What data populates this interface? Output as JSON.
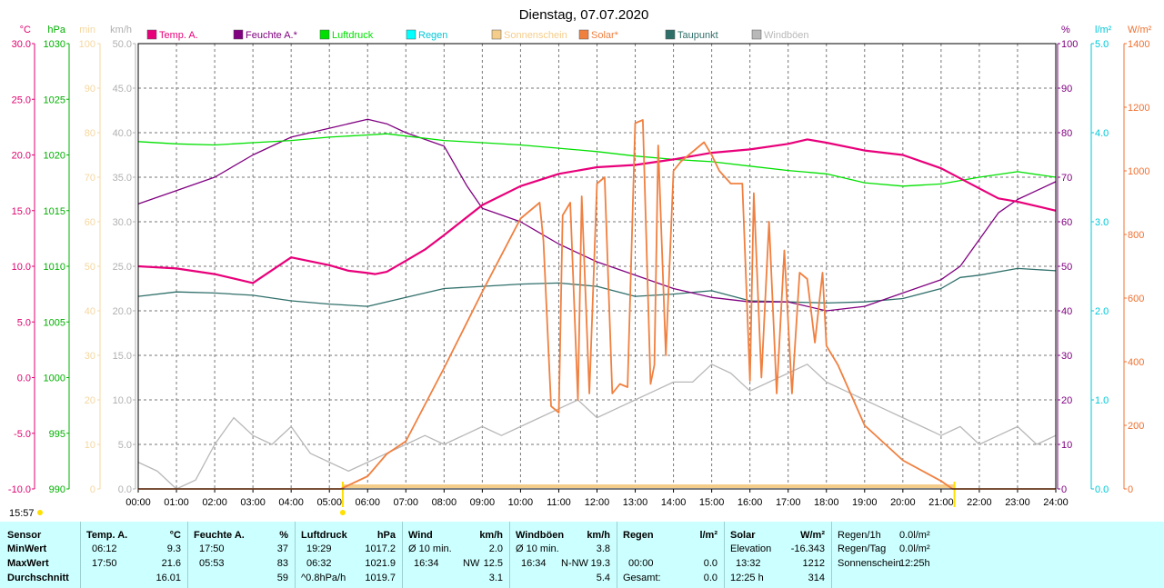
{
  "title": "Dienstag, 07.07.2020",
  "time_marker": "15:57",
  "legend": [
    {
      "label": "Temp. A.",
      "color": "#e8007a"
    },
    {
      "label": "Feuchte A.*",
      "color": "#800080"
    },
    {
      "label": "Luftdruck",
      "color": "#00e000"
    },
    {
      "label": "Regen",
      "color": "#00ffff"
    },
    {
      "label": "Sonnenschein",
      "color": "#f5cd8a"
    },
    {
      "label": "Solar*",
      "color": "#f08040"
    },
    {
      "label": "Taupunkt",
      "color": "#2f6f6a"
    },
    {
      "label": "Windböen",
      "color": "#b8b8b8"
    }
  ],
  "axes": {
    "temp": {
      "unit": "°C",
      "ticks": [
        "30.0",
        "25.0",
        "20.0",
        "15.0",
        "10.0",
        "5.0",
        "0.0",
        "-5.0",
        "-10.0"
      ],
      "color": "#e0006f"
    },
    "pressure": {
      "unit": "hPa",
      "ticks": [
        "1030",
        "1025",
        "1020",
        "1015",
        "1010",
        "1005",
        "1000",
        "995",
        "990"
      ],
      "color": "#00b000"
    },
    "sun_min": {
      "unit": "min",
      "ticks": [
        "100",
        "90",
        "80",
        "70",
        "60",
        "50",
        "40",
        "30",
        "20",
        "10",
        "0"
      ],
      "color": "#f5d7a0"
    },
    "wind": {
      "unit": "km/h",
      "ticks": [
        "50.0",
        "45.0",
        "40.0",
        "35.0",
        "30.0",
        "25.0",
        "20.0",
        "15.0",
        "10.0",
        "5.0",
        "0.0"
      ],
      "color": "#b0b0b0"
    },
    "humidity": {
      "unit": "%",
      "ticks": [
        "100",
        "90",
        "80",
        "70",
        "60",
        "50",
        "40",
        "30",
        "20",
        "10",
        "0"
      ],
      "color": "#800080"
    },
    "rain": {
      "unit": "l/m²",
      "ticks": [
        "5.0",
        "4.0",
        "3.0",
        "2.0",
        "1.0",
        "0.0"
      ],
      "color": "#00c8d8"
    },
    "solar": {
      "unit": "W/m²",
      "ticks": [
        "1400",
        "1200",
        "1000",
        "800",
        "600",
        "400",
        "200",
        "0"
      ],
      "color": "#f07030"
    },
    "x_ticks": [
      "00:00",
      "01:00",
      "02:00",
      "03:00",
      "04:00",
      "05:00",
      "06:00",
      "07:00",
      "08:00",
      "09:00",
      "10:00",
      "11:00",
      "12:00",
      "13:00",
      "14:00",
      "15:00",
      "16:00",
      "17:00",
      "18:00",
      "19:00",
      "20:00",
      "21:00",
      "22:00",
      "23:00",
      "24:00"
    ]
  },
  "chart_data": {
    "type": "line",
    "title": "Dienstag, 07.07.2020",
    "x_range": [
      0,
      24
    ],
    "series": [
      {
        "name": "Temp. A.",
        "unit": "°C",
        "color": "#e8007a",
        "x": [
          0,
          1,
          2,
          3,
          4,
          5,
          5.5,
          6,
          6.2,
          6.5,
          7,
          7.5,
          8,
          9,
          10,
          11,
          12,
          13,
          14,
          15,
          16,
          17,
          17.5,
          18,
          19,
          20,
          21,
          22,
          22.5,
          23,
          24
        ],
        "y": [
          10,
          9.8,
          9.3,
          8.5,
          10.8,
          10.1,
          9.6,
          9.4,
          9.3,
          9.5,
          10.5,
          11.5,
          12.8,
          15.5,
          17.2,
          18.3,
          18.9,
          19.1,
          19.6,
          20.2,
          20.5,
          21.0,
          21.4,
          21.1,
          20.4,
          20.0,
          18.8,
          17.0,
          16.1,
          15.8,
          15.0
        ]
      },
      {
        "name": "Feuchte A.*",
        "unit": "%",
        "color": "#800080",
        "x": [
          0,
          1,
          2,
          3,
          4,
          5,
          6,
          6.5,
          7,
          8,
          8.6,
          9,
          10,
          11,
          12,
          13,
          14,
          15,
          16,
          17,
          18,
          19,
          20,
          21,
          21.5,
          22,
          22.5,
          23,
          24
        ],
        "y": [
          64,
          67,
          70,
          75,
          79,
          81,
          83,
          82,
          80,
          77,
          68,
          63,
          60,
          55,
          51,
          48,
          45,
          43,
          42,
          42,
          40,
          41,
          44,
          47,
          50,
          56,
          62,
          65,
          69
        ]
      },
      {
        "name": "Luftdruck",
        "unit": "hPa",
        "color": "#00e000",
        "x": [
          0,
          1,
          2,
          3,
          4,
          5,
          6,
          6.5,
          7,
          8,
          9,
          10,
          11,
          12,
          13,
          14,
          15,
          16,
          17,
          18,
          19,
          20,
          21,
          22,
          23,
          24
        ],
        "y": [
          1021.2,
          1021.0,
          1020.9,
          1021.1,
          1021.3,
          1021.6,
          1021.8,
          1021.9,
          1021.7,
          1021.3,
          1021.1,
          1020.9,
          1020.6,
          1020.3,
          1019.9,
          1019.6,
          1019.4,
          1019.0,
          1018.6,
          1018.3,
          1017.5,
          1017.2,
          1017.4,
          1018.0,
          1018.5,
          1018.0
        ]
      },
      {
        "name": "Taupunkt",
        "unit": "°C",
        "color": "#2f6f6a",
        "x": [
          0,
          1,
          2,
          3,
          4,
          5,
          6,
          7,
          8,
          9,
          10,
          11,
          12,
          13,
          14,
          15,
          16,
          17,
          18,
          19,
          20,
          21,
          21.5,
          22,
          23,
          24
        ],
        "y": [
          7.3,
          7.7,
          7.6,
          7.4,
          6.9,
          6.6,
          6.4,
          7.2,
          8.0,
          8.2,
          8.4,
          8.5,
          8.2,
          7.3,
          7.5,
          7.8,
          6.9,
          6.8,
          6.7,
          6.8,
          7.1,
          8.0,
          9.0,
          9.2,
          9.8,
          9.6
        ]
      },
      {
        "name": "Solar*",
        "unit": "W/m²",
        "color": "#f08040",
        "x": [
          0,
          5.3,
          6,
          6.5,
          7,
          8,
          9,
          10,
          10.5,
          10.6,
          10.8,
          11,
          11.1,
          11.3,
          11.5,
          11.6,
          11.8,
          12,
          12.2,
          12.4,
          12.6,
          12.8,
          13,
          13.2,
          13.4,
          13.5,
          13.6,
          13.8,
          14,
          14.2,
          14.4,
          14.6,
          14.8,
          15,
          15.2,
          15.5,
          15.8,
          16,
          16.1,
          16.3,
          16.5,
          16.7,
          16.9,
          17.1,
          17.3,
          17.5,
          17.7,
          17.9,
          18,
          18.3,
          19,
          20,
          21,
          21.3,
          21.6,
          22,
          24
        ],
        "y": [
          0,
          0,
          40,
          110,
          150,
          380,
          620,
          850,
          900,
          780,
          260,
          240,
          860,
          900,
          280,
          920,
          300,
          960,
          980,
          300,
          330,
          320,
          1150,
          1160,
          330,
          390,
          1080,
          420,
          1000,
          1030,
          1050,
          1070,
          1090,
          1050,
          1000,
          960,
          960,
          340,
          930,
          350,
          840,
          300,
          750,
          300,
          680,
          660,
          460,
          680,
          450,
          390,
          200,
          90,
          25,
          0,
          0,
          0,
          0
        ]
      },
      {
        "name": "Windböen",
        "unit": "km/h",
        "color": "#b8b8b8",
        "x": [
          0,
          0.5,
          1,
          1.5,
          2,
          2.5,
          3,
          3.5,
          4,
          4.5,
          5,
          5.5,
          6,
          6.5,
          7,
          7.5,
          8,
          8.5,
          9,
          9.5,
          10,
          10.5,
          11,
          11.5,
          12,
          12.5,
          13,
          13.5,
          14,
          14.5,
          15,
          15.5,
          16,
          16.5,
          17,
          17.5,
          18,
          18.5,
          19,
          19.5,
          20,
          20.5,
          21,
          21.5,
          22,
          22.5,
          23,
          23.5,
          24
        ],
        "y": [
          3,
          2,
          0,
          1,
          5,
          8,
          6,
          5,
          7,
          4,
          3,
          2,
          3,
          4,
          5,
          6,
          5,
          6,
          7,
          6,
          7,
          8,
          9,
          10,
          8,
          9,
          10,
          11,
          12,
          12,
          14,
          13,
          11,
          12,
          13,
          14,
          12,
          11,
          10,
          9,
          8,
          7,
          6,
          7,
          5,
          6,
          7,
          5,
          6
        ]
      }
    ]
  },
  "table": {
    "headers": {
      "sensor": "Sensor",
      "temp": "Temp. A.",
      "temp_unit": "°C",
      "hum": "Feuchte A.",
      "hum_unit": "%",
      "press": "Luftdruck",
      "press_unit": "hPa",
      "wind": "Wind",
      "wind_unit": "km/h",
      "gust": "Windböen",
      "gust_unit": "km/h",
      "rain": "Regen",
      "rain_unit": "l/m²",
      "solar": "Solar",
      "solar_unit": "W/m²"
    },
    "rows": {
      "min": "MinWert",
      "max": "MaxWert",
      "avg": "Durchschnitt"
    },
    "temp": {
      "min_t": "06:12",
      "min_v": "9.3",
      "max_t": "17:50",
      "max_v": "21.6",
      "avg": "16.01"
    },
    "hum": {
      "min_t": "17:50",
      "min_v": "37",
      "max_t": "05:53",
      "max_v": "83",
      "avg": "59"
    },
    "press": {
      "min_t": "19:29",
      "min_v": "1017.2",
      "max_t": "06:32",
      "max_v": "1021.9",
      "trend": "^0.8hPa/h",
      "avg": "1019.7"
    },
    "wind": {
      "l1": "Ø 10 min.",
      "l1_v": "2.0",
      "max_t": "16:34",
      "max_dir": "NW",
      "max_v": "12.5",
      "avg": "3.1"
    },
    "gust": {
      "l1": "Ø 10 min.",
      "l1_v": "3.8",
      "max_t": "16:34",
      "max_dir": "N-NW",
      "max_v": "19.3",
      "avg": "5.4"
    },
    "rain": {
      "r1_t": "00:00",
      "r1_v": "0.0",
      "total_label": "Gesamt:",
      "total_v": "0.0"
    },
    "solar": {
      "elev_label": "Elevation",
      "elev_v": "-16.343",
      "max_t": "13:32",
      "max_v": "1212",
      "sun_h": "12:25 h",
      "avg": "314"
    },
    "extra": {
      "r1h_label": "Regen/1h",
      "r1h_v": "0.0l/m²",
      "rday_label": "Regen/Tag",
      "rday_v": "0.0l/m²",
      "sun_label": "Sonnenschein",
      "sun_v": "12:25h"
    }
  }
}
